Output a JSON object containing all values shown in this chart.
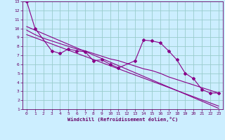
{
  "xlabel": "Windchill (Refroidissement éolien,°C)",
  "bg_color": "#cceeff",
  "grid_color": "#99cccc",
  "line_color": "#880088",
  "xlim": [
    -0.5,
    23.5
  ],
  "ylim": [
    1,
    13
  ],
  "xticks": [
    0,
    1,
    2,
    3,
    4,
    5,
    6,
    7,
    8,
    9,
    10,
    11,
    12,
    13,
    14,
    15,
    16,
    17,
    18,
    19,
    20,
    21,
    22,
    23
  ],
  "yticks": [
    1,
    2,
    3,
    4,
    5,
    6,
    7,
    8,
    9,
    10,
    11,
    12,
    13
  ],
  "data_x": [
    0,
    1,
    3,
    4,
    5,
    6,
    7,
    8,
    9,
    10,
    11,
    13,
    14,
    15,
    16,
    17,
    18,
    19,
    20,
    21,
    22,
    23
  ],
  "data_y": [
    13,
    10,
    7.5,
    7.2,
    7.7,
    7.5,
    7.4,
    6.4,
    6.5,
    6.0,
    5.6,
    6.4,
    8.7,
    8.6,
    8.4,
    7.5,
    6.5,
    5.0,
    4.4,
    3.2,
    2.8,
    2.8
  ],
  "line1_x": [
    0,
    23
  ],
  "line1_y": [
    10.2,
    1.1
  ],
  "line2_x": [
    0,
    23
  ],
  "line2_y": [
    9.3,
    1.35
  ],
  "smooth_x": [
    0,
    1,
    2,
    3,
    4,
    5,
    6,
    7,
    8,
    9,
    10,
    11,
    12,
    13,
    14,
    15,
    16,
    17,
    18,
    19,
    20,
    21,
    22,
    23
  ],
  "smooth_y": [
    9.8,
    9.3,
    8.9,
    8.6,
    8.3,
    8.0,
    7.7,
    7.5,
    7.2,
    6.9,
    6.6,
    6.4,
    6.1,
    5.8,
    5.5,
    5.3,
    5.0,
    4.6,
    4.3,
    4.0,
    3.7,
    3.4,
    3.1,
    2.8
  ]
}
